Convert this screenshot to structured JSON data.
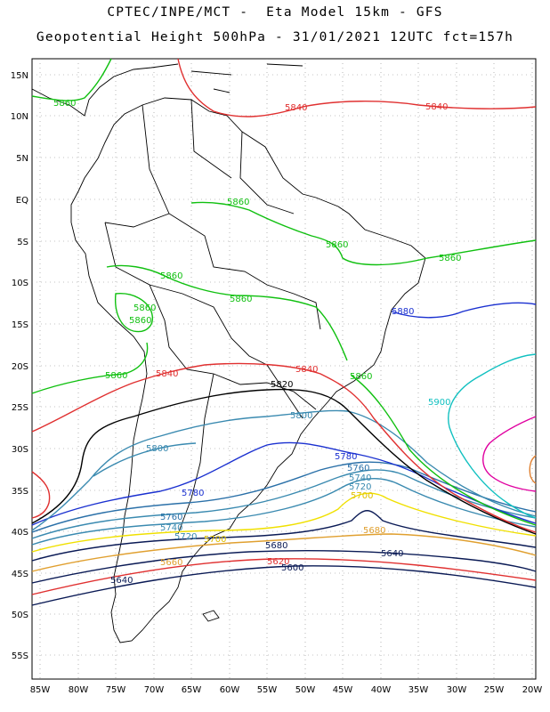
{
  "header": {
    "line1": "CPTEC/INPE/MCT -  Eta Model 15km - GFS",
    "line2": "Geopotential Height 500hPa - 31/01/2021 12UTC fct=157h"
  },
  "axes": {
    "lat_labels": [
      "15N",
      "10N",
      "5N",
      "EQ",
      "5S",
      "10S",
      "15S",
      "20S",
      "25S",
      "30S",
      "35S",
      "40S",
      "45S",
      "50S",
      "55S"
    ],
    "lon_labels": [
      "85W",
      "80W",
      "75W",
      "70W",
      "65W",
      "60W",
      "55W",
      "50W",
      "45W",
      "40W",
      "35W",
      "30W",
      "25W",
      "20W"
    ]
  },
  "contour_labels": {
    "c5600": "5600",
    "c5620": "5620",
    "c5640": "5640",
    "c5660": "5660",
    "c5680": "5680",
    "c5700": "5700",
    "c5720": "5720",
    "c5740": "5740",
    "c5760": "5760",
    "c5780": "5780",
    "c5800": "5800",
    "c5820": "5820",
    "c5840": "5840",
    "c5860": "5860",
    "c5880": "5880",
    "c5900": "5900"
  },
  "colors": {
    "c5600": "#0a1a55",
    "c5620": "#e03030",
    "c5640": "#0a1a55",
    "c5660": "#e0a030",
    "c5680": "#0a1a55",
    "c5700": "#f0e000",
    "c5720": "#3a8ab0",
    "c5740": "#3a8ab0",
    "c5760": "#2a70a8",
    "c5780": "#1a30d0",
    "c5800": "#3a8ab0",
    "c5820": "#000000",
    "c5840": "#e03030",
    "c5860": "#10c010",
    "c5880": "#10c010",
    "c5900": "#10c0c0",
    "c5920": "#e000a0",
    "c5940": "#e08030"
  }
}
